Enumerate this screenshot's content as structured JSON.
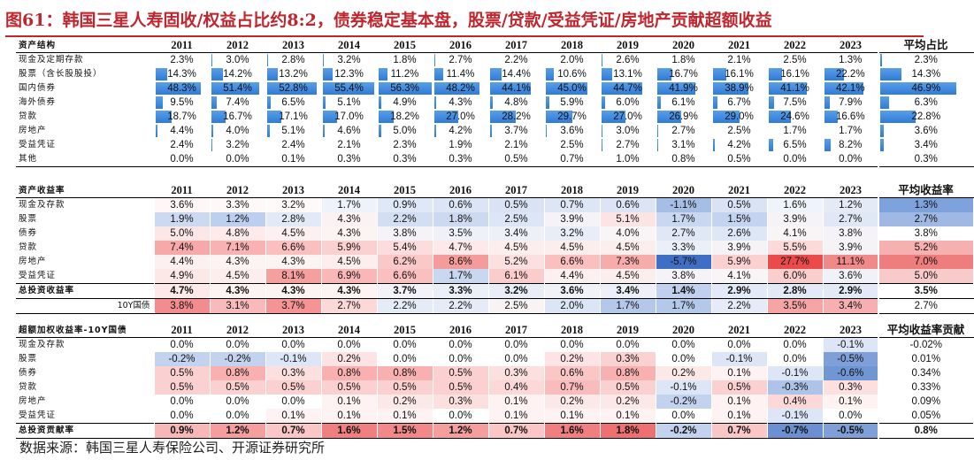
{
  "title": "图61：韩国三星人寿固收/权益占比约8:2，债券稳定基本盘，股票/贷款/受益凭证/房地产贡献超额收益",
  "source": "数据来源：韩国三星人寿保险公司、开源证券研究所",
  "years": [
    "2011",
    "2012",
    "2013",
    "2014",
    "2015",
    "2016",
    "2017",
    "2018",
    "2019",
    "2020",
    "2021",
    "2022",
    "2023"
  ],
  "colors": {
    "title_red": "#c0262d",
    "bar_blue": "#2f7bd6"
  },
  "allocation": {
    "header": "资产结构",
    "avg_header": "平均占比",
    "rows": [
      {
        "label": "现金及定期存款",
        "values": [
          "2.3%",
          "3.0%",
          "2.8%",
          "3.2%",
          "1.8%",
          "2.7%",
          "2.2%",
          "2.0%",
          "2.6%",
          "1.8%",
          "2.1%",
          "2.5%",
          "1.3%"
        ],
        "avg": "2.3%",
        "fills": [
          0.04,
          0.05,
          0.05,
          0.06,
          0.03,
          0.05,
          0.04,
          0.04,
          0.05,
          0.03,
          0.04,
          0.04,
          0.02
        ],
        "avg_fill": 0.04
      },
      {
        "label": "股票（含长股股投）",
        "values": [
          "14.3%",
          "14.2%",
          "13.2%",
          "12.3%",
          "11.2%",
          "11.4%",
          "14.4%",
          "10.6%",
          "13.1%",
          "16.7%",
          "16.1%",
          "16.1%",
          "22.2%"
        ],
        "avg": "14.3%",
        "fills": [
          0.25,
          0.25,
          0.23,
          0.22,
          0.2,
          0.2,
          0.25,
          0.19,
          0.23,
          0.3,
          0.29,
          0.29,
          0.4
        ],
        "avg_fill": 0.25
      },
      {
        "label": "国内债券",
        "values": [
          "48.3%",
          "51.4%",
          "52.8%",
          "55.4%",
          "56.3%",
          "48.2%",
          "44.1%",
          "45.0%",
          "44.7%",
          "41.9%",
          "38.9%",
          "41.1%",
          "42.1%"
        ],
        "avg": "46.9%",
        "fills": [
          0.86,
          0.91,
          0.94,
          0.98,
          1.0,
          0.86,
          0.78,
          0.8,
          0.79,
          0.74,
          0.69,
          0.73,
          0.75
        ],
        "avg_fill": 0.83
      },
      {
        "label": "海外债券",
        "values": [
          "9.5%",
          "7.4%",
          "6.5%",
          "5.1%",
          "4.9%",
          "4.3%",
          "4.8%",
          "5.9%",
          "6.0%",
          "6.1%",
          "6.7%",
          "7.5%",
          "7.9%"
        ],
        "avg": "6.3%",
        "fills": [
          0.17,
          0.13,
          0.11,
          0.09,
          0.09,
          0.08,
          0.09,
          0.1,
          0.11,
          0.11,
          0.12,
          0.13,
          0.14
        ],
        "avg_fill": 0.11
      },
      {
        "label": "贷款",
        "values": [
          "18.7%",
          "16.7%",
          "17.1%",
          "17.0%",
          "18.2%",
          "27.0%",
          "28.2%",
          "29.7%",
          "27.0%",
          "26.9%",
          "29.0%",
          "24.6%",
          "16.6%"
        ],
        "avg": "22.8%",
        "fills": [
          0.33,
          0.3,
          0.3,
          0.3,
          0.32,
          0.48,
          0.5,
          0.53,
          0.48,
          0.48,
          0.52,
          0.44,
          0.29
        ],
        "avg_fill": 0.4
      },
      {
        "label": "房地产",
        "values": [
          "4.4%",
          "4.0%",
          "5.1%",
          "4.6%",
          "5.0%",
          "4.2%",
          "3.7%",
          "3.6%",
          "3.0%",
          "2.7%",
          "2.5%",
          "1.7%",
          "1.7%"
        ],
        "avg": "3.6%",
        "fills": [
          0.08,
          0.07,
          0.09,
          0.08,
          0.09,
          0.07,
          0.07,
          0.06,
          0.05,
          0.05,
          0.04,
          0.03,
          0.03
        ],
        "avg_fill": 0.06
      },
      {
        "label": "受益凭证",
        "values": [
          "2.4%",
          "3.2%",
          "2.4%",
          "2.1%",
          "2.3%",
          "1.9%",
          "2.1%",
          "2.5%",
          "2.7%",
          "3.1%",
          "4.2%",
          "6.5%",
          "8.2%"
        ],
        "avg": "3.4%",
        "fills": [
          0.04,
          0.06,
          0.04,
          0.04,
          0.04,
          0.03,
          0.04,
          0.04,
          0.05,
          0.06,
          0.07,
          0.12,
          0.15
        ],
        "avg_fill": 0.06
      },
      {
        "label": "其他",
        "values": [
          "0.0%",
          "0.0%",
          "0.1%",
          "0.3%",
          "0.3%",
          "0.3%",
          "0.5%",
          "0.7%",
          "1.0%",
          "0.8%",
          "0.5%",
          "0.0%",
          "0.0%"
        ],
        "avg": "0.3%",
        "fills": [
          0,
          0,
          0,
          0.01,
          0.01,
          0.01,
          0.01,
          0.01,
          0.02,
          0.01,
          0.01,
          0,
          0
        ],
        "avg_fill": 0.01
      }
    ]
  },
  "returns": {
    "header": "资产收益率",
    "avg_header": "平均收益率",
    "rows": [
      {
        "label": "现金及存款",
        "values": [
          "3.6%",
          "3.3%",
          "3.2%",
          "1.7%",
          "0.9%",
          "0.6%",
          "0.5%",
          "0.7%",
          "0.6%",
          "-1.1%",
          "0.5%",
          "1.6%",
          "1.2%"
        ],
        "avg": "1.3%",
        "bg": [
          "#fff6f6",
          "#fff8f8",
          "#fffafa",
          "#eef2fa",
          "#dfe8f6",
          "#dbe5f5",
          "#d9e3f4",
          "#dce6f5",
          "#dbe5f5",
          "#a6bee6",
          "#d9e3f4",
          "#eff3fb",
          "#e4ebf7"
        ],
        "avg_bg": "#7ea2dc"
      },
      {
        "label": "股票",
        "values": [
          "1.9%",
          "1.2%",
          "2.8%",
          "4.3%",
          "2.2%",
          "1.8%",
          "2.5%",
          "3.9%",
          "5.1%",
          "1.7%",
          "1.5%",
          "3.9%",
          "2.7%"
        ],
        "avg": "2.7%",
        "bg": [
          "#ccd9f1",
          "#bccfee",
          "#e3eaf7",
          "#fbf3f3",
          "#d4def3",
          "#ccd9f1",
          "#dde6f6",
          "#f6f3f7",
          "#fde4e4",
          "#c9d7f0",
          "#c4d3ef",
          "#f6f3f7",
          "#e0e8f6"
        ],
        "avg_bg": "#9fb9e4"
      },
      {
        "label": "债券",
        "values": [
          "5.0%",
          "4.8%",
          "4.5%",
          "4.3%",
          "3.8%",
          "3.5%",
          "3.4%",
          "3.2%",
          "4.0%",
          "2.7%",
          "2.6%",
          "4.1%",
          "3.8%"
        ],
        "avg": "3.8%",
        "bg": [
          "#fde6e6",
          "#feeaea",
          "#fdf0f0",
          "#fcf3f3",
          "#f5f3f7",
          "#eff1f8",
          "#edf0f8",
          "#e8edf8",
          "#f9f4f6",
          "#e0e8f6",
          "#dee7f6",
          "#f9f4f6",
          "#f5f3f7"
        ],
        "avg_bg": "#ffffff"
      },
      {
        "label": "贷款",
        "values": [
          "7.4%",
          "7.1%",
          "6.6%",
          "5.9%",
          "5.4%",
          "4.7%",
          "4.5%",
          "4.5%",
          "4.5%",
          "3.3%",
          "3.9%",
          "5.5%",
          "3.9%"
        ],
        "avg": "5.2%",
        "bg": [
          "#f7a9a9",
          "#f8b2b2",
          "#fabfbf",
          "#fbd0d0",
          "#fcdcdc",
          "#fde9e9",
          "#fdeeee",
          "#fdeeee",
          "#fdeeee",
          "#ebeff8",
          "#f6f3f7",
          "#fcdada",
          "#f6f3f7"
        ],
        "avg_bg": "#f6b0b0"
      },
      {
        "label": "房地产",
        "values": [
          "4.4%",
          "4.3%",
          "4.3%",
          "4.5%",
          "6.2%",
          "8.6%",
          "5.2%",
          "6.6%",
          "7.3%",
          "-5.7%",
          "5.9%",
          "27.7%",
          "11.1%"
        ],
        "avg": "7.0%",
        "bg": [
          "#fcf0f0",
          "#fcf3f3",
          "#fcf3f3",
          "#fdeeee",
          "#fac8c8",
          "#f49b9b",
          "#fce0e0",
          "#fabfbf",
          "#f7acac",
          "#3f6fc4",
          "#fbd0d0",
          "#ea4a4a",
          "#f08a8a"
        ],
        "avg_bg": "#ee7d7d"
      },
      {
        "label": "受益凭证",
        "values": [
          "4.9%",
          "4.5%",
          "8.1%",
          "6.9%",
          "6.6%",
          "1.7%",
          "6.1%",
          "4.4%",
          "4.5%",
          "3.8%",
          "4.1%",
          "6.0%",
          "3.6%"
        ],
        "avg": "5.0%",
        "bg": [
          "#fde8e8",
          "#fdeeee",
          "#f59f9f",
          "#f9b7b7",
          "#fabfbf",
          "#c9d7f0",
          "#fbcccc",
          "#fcf0f0",
          "#fdeeee",
          "#f5f3f7",
          "#f9f4f6",
          "#fbcece",
          "#f0f2f8"
        ],
        "avg_bg": "#f8caca"
      },
      {
        "label": "总投资收益率",
        "values": [
          "4.7%",
          "4.3%",
          "4.3%",
          "4.3%",
          "3.7%",
          "3.3%",
          "3.2%",
          "3.6%",
          "3.4%",
          "1.4%",
          "2.9%",
          "2.8%",
          "2.9%"
        ],
        "avg": "3.5%",
        "bg": [
          "#fde9e9",
          "#fcf3f3",
          "#fcf3f3",
          "#fcf3f3",
          "#f3f2f8",
          "#ebeff8",
          "#e8edf8",
          "#f0f2f8",
          "#edf0f8",
          "#c0d0ee",
          "#e3eaf7",
          "#e2e9f7",
          "#e3eaf7"
        ],
        "avg_bg": "#ffffff",
        "total": true
      },
      {
        "label": "10Y国债",
        "values": [
          "3.8%",
          "3.1%",
          "3.7%",
          "2.7%",
          "2.2%",
          "2.2%",
          "2.5%",
          "2.0%",
          "1.7%",
          "1.7%",
          "2.2%",
          "3.5%",
          "3.4%"
        ],
        "avg": "2.7%",
        "bg": [
          "#f38d8d",
          "#f8baba",
          "#f49494",
          "#fbd9d9",
          "#e5ecf8",
          "#e5ecf8",
          "#f8f4f6",
          "#dbe5f5",
          "#b4c8ea",
          "#b4c8ea",
          "#e5ecf8",
          "#f6a5a5",
          "#f7afaf"
        ],
        "avg_bg": "#ffffff",
        "bond": true
      }
    ]
  },
  "excess": {
    "header": "超额加权收益率-10Y国债",
    "avg_header": "平均收益率贡献",
    "rows": [
      {
        "label": "现金及存款",
        "values": [
          "0.0%",
          "0.0%",
          "0.0%",
          "0.0%",
          "0.0%",
          "0.0%",
          "0.0%",
          "0.0%",
          "0.0%",
          "0.0%",
          "0.0%",
          "0.0%",
          "-0.1%"
        ],
        "avg": "-0.02%",
        "bg": [
          "#ffffff",
          "#ffffff",
          "#ffffff",
          "#ffffff",
          "#ffffff",
          "#ffffff",
          "#ffffff",
          "#ffffff",
          "#ffffff",
          "#ffffff",
          "#ffffff",
          "#ffffff",
          "#dde6f6"
        ],
        "avg_bg": "#ffffff"
      },
      {
        "label": "股票",
        "values": [
          "-0.2%",
          "-0.2%",
          "-0.1%",
          "0.2%",
          "0.0%",
          "0.0%",
          "0.0%",
          "0.2%",
          "0.3%",
          "0.0%",
          "-0.1%",
          "0.0%",
          "-0.5%"
        ],
        "avg": "0.01%",
        "bg": [
          "#c3d3ef",
          "#c3d3ef",
          "#dde6f6",
          "#fde3e3",
          "#ffffff",
          "#ffffff",
          "#ffffff",
          "#fde3e3",
          "#fbd2d2",
          "#ffffff",
          "#dde6f6",
          "#ffffff",
          "#7e9fd8"
        ],
        "avg_bg": "#ffffff"
      },
      {
        "label": "债券",
        "values": [
          "0.5%",
          "0.8%",
          "0.3%",
          "0.8%",
          "0.8%",
          "0.5%",
          "0.3%",
          "0.6%",
          "0.8%",
          "0.2%",
          "0.1%",
          "-0.1%",
          "-0.6%"
        ],
        "avg": "0.34%",
        "bg": [
          "#fbd0d0",
          "#f8b0b0",
          "#fce0e0",
          "#f8b0b0",
          "#f8b0b0",
          "#fbd0d0",
          "#fce0e0",
          "#fac6c6",
          "#f8b0b0",
          "#fde8e8",
          "#fef2f2",
          "#dde6f6",
          "#7096d4"
        ],
        "avg_bg": "#ffffff"
      },
      {
        "label": "贷款",
        "values": [
          "0.5%",
          "0.5%",
          "0.5%",
          "0.5%",
          "0.5%",
          "0.5%",
          "0.4%",
          "0.7%",
          "0.5%",
          "-0.1%",
          "0.5%",
          "-0.3%",
          "0.3%"
        ],
        "avg": "0.33%",
        "bg": [
          "#fbd0d0",
          "#fbd0d0",
          "#fbd0d0",
          "#fbd0d0",
          "#fbd0d0",
          "#fbd0d0",
          "#fcd8d8",
          "#f9bcbc",
          "#fbd0d0",
          "#dde6f6",
          "#fbd0d0",
          "#aec3e8",
          "#fce0e0"
        ],
        "avg_bg": "#ffffff"
      },
      {
        "label": "房地产",
        "values": [
          "0.0%",
          "0.0%",
          "0.0%",
          "0.1%",
          "0.2%",
          "0.3%",
          "0.1%",
          "0.2%",
          "0.2%",
          "-0.2%",
          "0.1%",
          "0.4%",
          "0.1%"
        ],
        "avg": "0.09%",
        "bg": [
          "#ffffff",
          "#ffffff",
          "#ffffff",
          "#fef2f2",
          "#fde8e8",
          "#fce0e0",
          "#fef2f2",
          "#fde8e8",
          "#fde8e8",
          "#c3d3ef",
          "#fef2f2",
          "#fcd8d8",
          "#fef2f2"
        ],
        "avg_bg": "#ffffff"
      },
      {
        "label": "受益凭证",
        "values": [
          "0.0%",
          "0.0%",
          "0.1%",
          "0.1%",
          "0.1%",
          "0.0%",
          "0.1%",
          "0.1%",
          "0.1%",
          "0.0%",
          "0.1%",
          "-0.1%",
          "0.0%"
        ],
        "avg": "0.05%",
        "bg": [
          "#ffffff",
          "#ffffff",
          "#fef2f2",
          "#fef2f2",
          "#fef2f2",
          "#ffffff",
          "#fef2f2",
          "#fef2f2",
          "#fef2f2",
          "#ffffff",
          "#fef2f2",
          "#dde6f6",
          "#ffffff"
        ],
        "avg_bg": "#ffffff"
      },
      {
        "label": "总投资贡献率",
        "values": [
          "0.9%",
          "1.2%",
          "0.7%",
          "1.6%",
          "1.5%",
          "1.2%",
          "0.7%",
          "1.6%",
          "1.8%",
          "-0.2%",
          "0.7%",
          "-0.7%",
          "-0.5%"
        ],
        "avg": "0.8%",
        "bg": [
          "#f8b8b8",
          "#f59e9e",
          "#fac6c6",
          "#f08080",
          "#f28888",
          "#f59e9e",
          "#fac6c6",
          "#f08080",
          "#ee7070",
          "#c3d3ef",
          "#fac6c6",
          "#6a90d2",
          "#7e9fd8"
        ],
        "avg_bg": "#ffffff",
        "total": true
      }
    ]
  }
}
